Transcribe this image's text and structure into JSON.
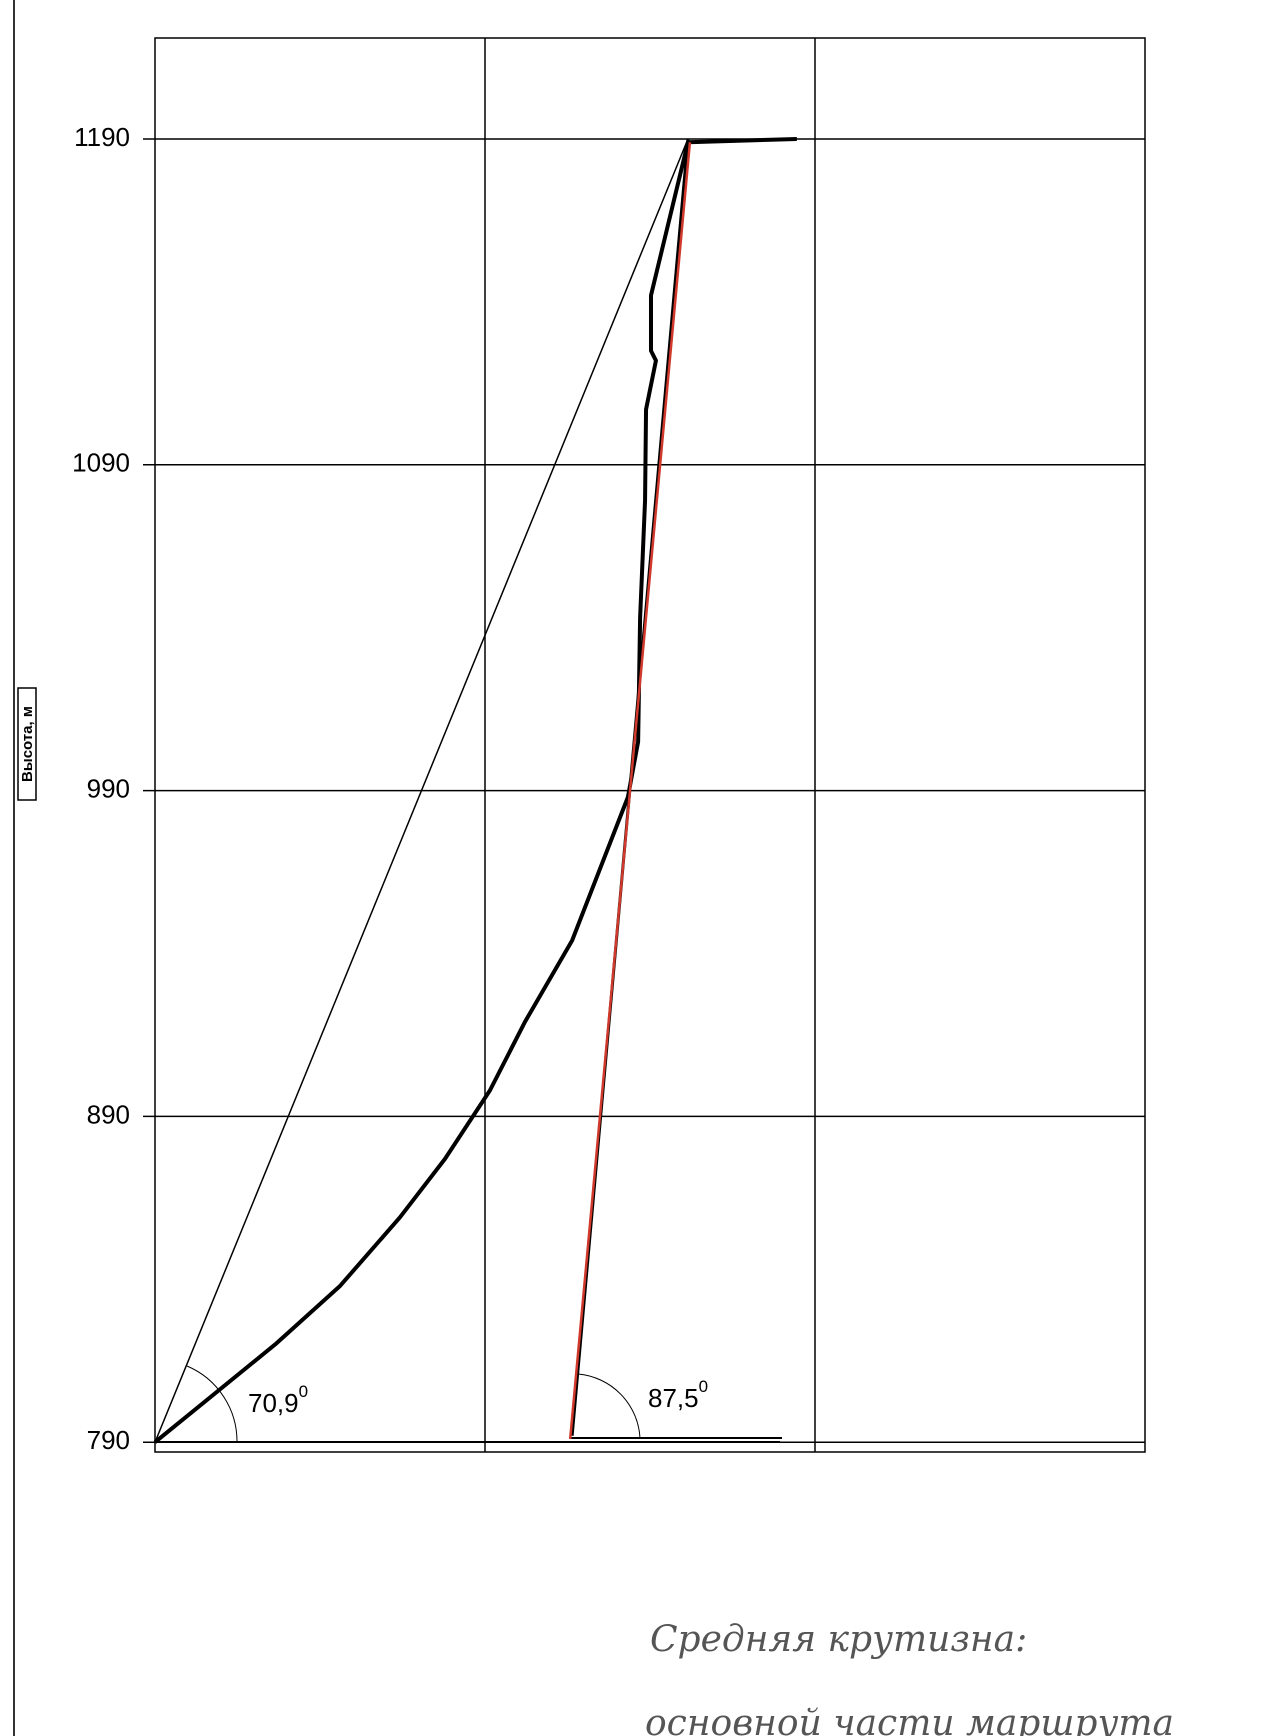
{
  "chart_data": {
    "type": "line",
    "y_label": "Высота, м",
    "xlim": [
      0,
      3
    ],
    "ylim": [
      787,
      1221
    ],
    "yticks": [
      790,
      890,
      990,
      1090,
      1190
    ],
    "grid": true,
    "series": [
      {
        "color": "#000000",
        "width": 1.5,
        "x": [
          0,
          1.615
        ],
        "values": [
          790,
          1190
        ]
      },
      {
        "color": "#000000",
        "width": 4,
        "x": [
          0,
          0.364,
          0.561,
          0.742,
          0.879,
          1.015,
          1.121,
          1.264,
          1.433,
          1.464,
          1.47,
          1.485,
          1.488,
          1.518,
          1.503,
          1.503,
          1.615,
          1.945
        ],
        "values": [
          790,
          820,
          838,
          859,
          877,
          898,
          919,
          944,
          988,
          1005,
          1043,
          1079,
          1107,
          1122,
          1125,
          1142,
          1189,
          1190
        ]
      },
      {
        "color": "#000000",
        "width": 3,
        "x": [
          1.264,
          1.615
        ],
        "values": [
          792,
          1190
        ]
      },
      {
        "color": "#d0392b",
        "width": 2.5,
        "x": [
          1.258,
          1.621
        ],
        "values": [
          791,
          1189
        ]
      }
    ],
    "annotations": [
      {
        "text": "70,9",
        "sup": "0"
      },
      {
        "text": "87,5",
        "sup": "0"
      }
    ],
    "note_lines": [
      "Средняя крутизна:",
      "основной части маршрута"
    ]
  }
}
